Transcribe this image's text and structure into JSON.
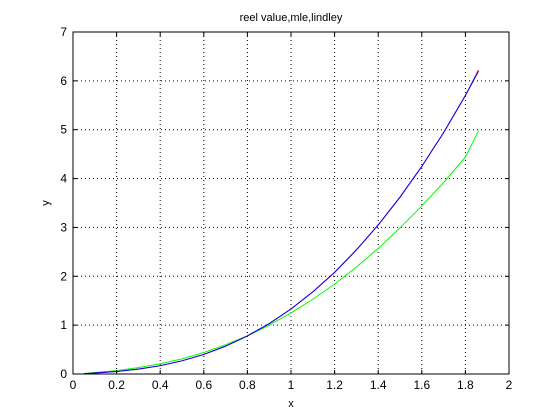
{
  "chart_data": {
    "type": "line",
    "title": "reel value,mle,lindley",
    "xlabel": "x",
    "ylabel": "y",
    "xlim": [
      0,
      2
    ],
    "ylim": [
      0,
      7
    ],
    "xticks": [
      0,
      0.2,
      0.4,
      0.6,
      0.8,
      1,
      1.2,
      1.4,
      1.6,
      1.8,
      2
    ],
    "yticks": [
      0,
      1,
      2,
      3,
      4,
      5,
      6,
      7
    ],
    "xtick_labels": [
      "0",
      "0.2",
      "0.4",
      "0.6",
      "0.8",
      "1",
      "1.2",
      "1.4",
      "1.6",
      "1.8",
      "2"
    ],
    "ytick_labels": [
      "0",
      "1",
      "2",
      "3",
      "4",
      "5",
      "6",
      "7"
    ],
    "grid": true,
    "grid_style": "dotted",
    "series": [
      {
        "color": "#00ff00",
        "x": [
          0.05,
          0.1,
          0.2,
          0.3,
          0.4,
          0.5,
          0.6,
          0.7,
          0.8,
          0.9,
          1.0,
          1.1,
          1.2,
          1.3,
          1.4,
          1.5,
          1.6,
          1.7,
          1.8,
          1.86
        ],
        "y": [
          0.01,
          0.03,
          0.07,
          0.13,
          0.21,
          0.31,
          0.44,
          0.6,
          0.78,
          1.0,
          1.25,
          1.53,
          1.84,
          2.19,
          2.57,
          2.99,
          3.44,
          3.92,
          4.44,
          4.98
        ]
      },
      {
        "color": "#ff0000",
        "x": [
          0.05,
          0.1,
          0.2,
          0.3,
          0.4,
          0.5,
          0.6,
          0.7,
          0.8,
          0.9,
          1.0,
          1.1,
          1.2,
          1.3,
          1.4,
          1.5,
          1.6,
          1.7,
          1.8,
          1.86
        ],
        "y": [
          0.005,
          0.02,
          0.05,
          0.1,
          0.17,
          0.27,
          0.4,
          0.57,
          0.78,
          1.03,
          1.33,
          1.68,
          2.08,
          2.54,
          3.05,
          3.62,
          4.25,
          4.94,
          5.7,
          6.22
        ]
      },
      {
        "color": "#0000ff",
        "x": [
          0.05,
          0.1,
          0.2,
          0.3,
          0.4,
          0.5,
          0.6,
          0.7,
          0.8,
          0.9,
          1.0,
          1.1,
          1.2,
          1.3,
          1.4,
          1.5,
          1.6,
          1.7,
          1.8,
          1.86
        ],
        "y": [
          0.005,
          0.02,
          0.05,
          0.1,
          0.17,
          0.27,
          0.4,
          0.57,
          0.78,
          1.03,
          1.33,
          1.68,
          2.08,
          2.54,
          3.05,
          3.62,
          4.25,
          4.94,
          5.7,
          6.2
        ]
      }
    ]
  }
}
